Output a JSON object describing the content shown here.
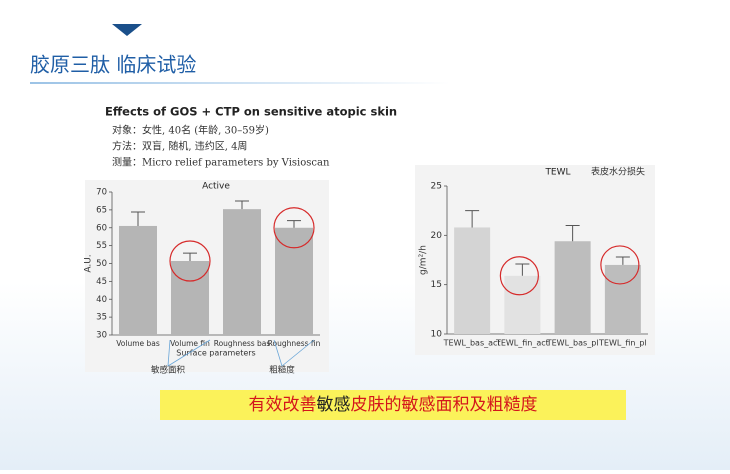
{
  "slide": {
    "title": "胶原三肽 临床试验",
    "header": "Effects of GOS + CTP on sensitive atopic skin",
    "lines": [
      "对象：女性, 40名 (年龄, 30–59岁)",
      "方法：双盲, 随机, 违约区, 4周",
      "测量：Micro relief parameters by Visioscan"
    ],
    "banner": [
      "有效改善",
      "敏感",
      "皮肤的敏感面积及粗糙度"
    ]
  },
  "chart_data": [
    {
      "type": "bar",
      "title": "Active",
      "y_label": "A.U.",
      "x_label": "Surface parameters",
      "categories": [
        "Volume bas",
        "Volume fin",
        "Roughness bas",
        "Roughness fin"
      ],
      "values": [
        60.5,
        50.7,
        65.2,
        60
      ],
      "errors": [
        3.9,
        2.2,
        2.3,
        2
      ],
      "colors": [
        "#b5b5b5",
        "#b5b5b5",
        "#b5b5b5",
        "#b5b5b5"
      ],
      "ylim": [
        30,
        70
      ],
      "yticks": [
        30,
        35,
        40,
        45,
        50,
        55,
        60,
        65,
        70
      ],
      "annotations": [
        "敏感面积",
        "粗糙度"
      ]
    },
    {
      "type": "bar",
      "title": "TEWL",
      "subtitle": "表皮水分损失",
      "y_label": "g/m²/h",
      "categories": [
        "TEWL_bas_act",
        "TEWL_fin_act",
        "TEWL_bas_pl",
        "TEWL_fin_pl"
      ],
      "values": [
        20.8,
        15.9,
        19.4,
        17.0
      ],
      "errors": [
        1.7,
        1.2,
        1.6,
        0.8
      ],
      "colors": [
        "#d4d4d4",
        "#e2e2e2",
        "#bdbdbd",
        "#bdbdbd"
      ],
      "ylim": [
        10,
        25
      ],
      "yticks": [
        10,
        15,
        20,
        25
      ]
    }
  ]
}
